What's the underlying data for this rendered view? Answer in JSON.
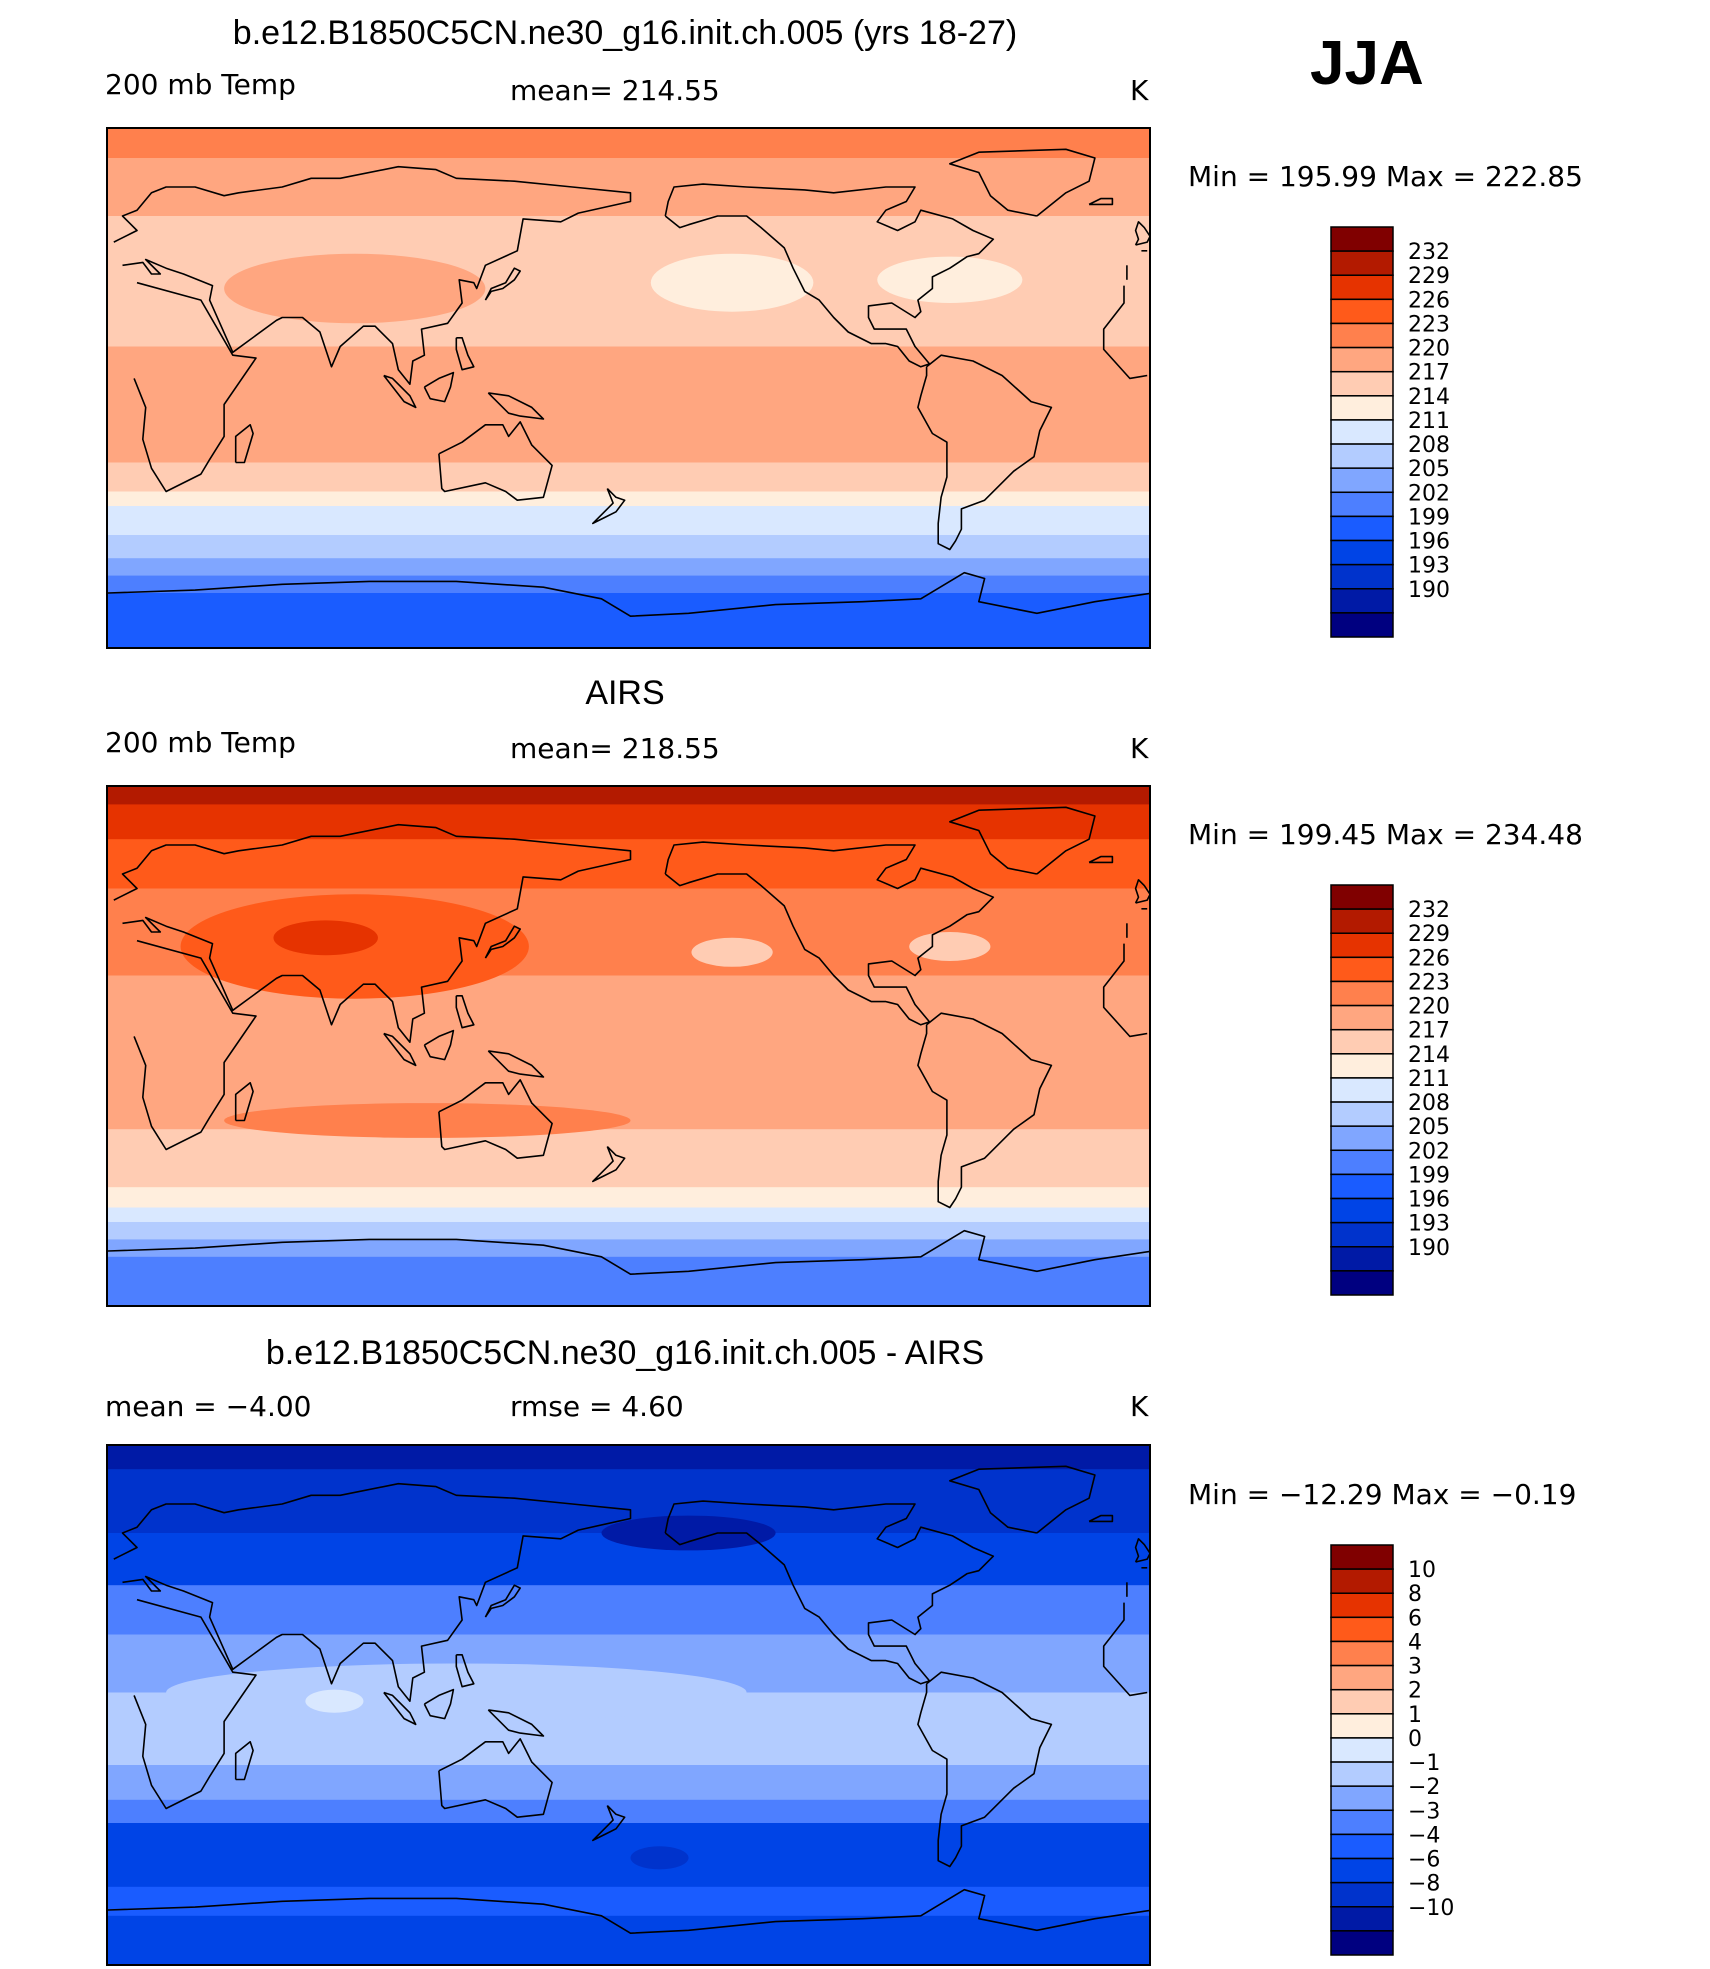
{
  "season": "JJA",
  "colorbars": {
    "abs_colors": [
      "#000080",
      "#001aa6",
      "#0033cc",
      "#0044e6",
      "#1a5cff",
      "#4d7fff",
      "#80a6ff",
      "#b3ccff",
      "#d9e8ff",
      "#ffeedd",
      "#ffccb3",
      "#ffa680",
      "#ff804d",
      "#ff5a1a",
      "#e63300",
      "#b31a00",
      "#800000"
    ],
    "diff_colors": [
      "#000080",
      "#001aa6",
      "#0033cc",
      "#0044e6",
      "#1a5cff",
      "#4d7fff",
      "#80a6ff",
      "#b3ccff",
      "#d9e8ff",
      "#ffeedd",
      "#ffccb3",
      "#ffa680",
      "#ff804d",
      "#ff5a1a",
      "#e63300",
      "#b31a00",
      "#800000"
    ]
  },
  "panels": [
    {
      "title": "b.e12.B1850C5CN.ne30_g16.init.ch.005 (yrs 18-27)",
      "left_label": "200 mb Temp",
      "center_label": "mean=  214.55",
      "units": "K",
      "minmax": "Min  =  195.99  Max  =  222.85",
      "colorbar_labels": [
        "232",
        "229",
        "226",
        "223",
        "220",
        "217",
        "214",
        "211",
        "208",
        "205",
        "202",
        "199",
        "196",
        "193",
        "190"
      ],
      "bands": [
        {
          "lat_top": 90,
          "lat_bot": 80,
          "color": "#ff804d"
        },
        {
          "lat_top": 80,
          "lat_bot": 60,
          "color": "#ffa680"
        },
        {
          "lat_top": 60,
          "lat_bot": 40,
          "color": "#ffccb3"
        },
        {
          "lat_top": 40,
          "lat_bot": 15,
          "color": "#ffccb3"
        },
        {
          "lat_top": 15,
          "lat_bot": -25,
          "color": "#ffa680"
        },
        {
          "lat_top": -25,
          "lat_bot": -35,
          "color": "#ffccb3"
        },
        {
          "lat_top": -35,
          "lat_bot": -40,
          "color": "#ffeedd"
        },
        {
          "lat_top": -40,
          "lat_bot": -50,
          "color": "#d9e8ff"
        },
        {
          "lat_top": -50,
          "lat_bot": -58,
          "color": "#b3ccff"
        },
        {
          "lat_top": -58,
          "lat_bot": -64,
          "color": "#80a6ff"
        },
        {
          "lat_top": -64,
          "lat_bot": -70,
          "color": "#4d7fff"
        },
        {
          "lat_top": -70,
          "lat_bot": -90,
          "color": "#1a5cff"
        }
      ],
      "blobs": [
        {
          "lon": 85,
          "lat": 35,
          "rlon": 45,
          "rlat": 12,
          "color": "#ffa680"
        },
        {
          "lon": 215,
          "lat": 37,
          "rlon": 28,
          "rlat": 10,
          "color": "#ffeedd"
        },
        {
          "lon": 290,
          "lat": 38,
          "rlon": 25,
          "rlat": 8,
          "color": "#ffeedd"
        }
      ]
    },
    {
      "title": "AIRS",
      "left_label": "200 mb Temp",
      "center_label": "mean=  218.55",
      "units": "K",
      "minmax": "Min  =  199.45  Max  =  234.48",
      "colorbar_labels": [
        "232",
        "229",
        "226",
        "223",
        "220",
        "217",
        "214",
        "211",
        "208",
        "205",
        "202",
        "199",
        "196",
        "193",
        "190"
      ],
      "bands": [
        {
          "lat_top": 90,
          "lat_bot": 84,
          "color": "#b31a00"
        },
        {
          "lat_top": 84,
          "lat_bot": 72,
          "color": "#e63300"
        },
        {
          "lat_top": 72,
          "lat_bot": 55,
          "color": "#ff5a1a"
        },
        {
          "lat_top": 55,
          "lat_bot": 25,
          "color": "#ff804d"
        },
        {
          "lat_top": 25,
          "lat_bot": -10,
          "color": "#ffa680"
        },
        {
          "lat_top": -10,
          "lat_bot": -28,
          "color": "#ffa680"
        },
        {
          "lat_top": -28,
          "lat_bot": -48,
          "color": "#ffccb3"
        },
        {
          "lat_top": -48,
          "lat_bot": -55,
          "color": "#ffeedd"
        },
        {
          "lat_top": -55,
          "lat_bot": -60,
          "color": "#d9e8ff"
        },
        {
          "lat_top": -60,
          "lat_bot": -66,
          "color": "#b3ccff"
        },
        {
          "lat_top": -66,
          "lat_bot": -72,
          "color": "#80a6ff"
        },
        {
          "lat_top": -72,
          "lat_bot": -90,
          "color": "#4d7fff"
        }
      ],
      "blobs": [
        {
          "lon": 85,
          "lat": 35,
          "rlon": 60,
          "rlat": 18,
          "color": "#ff5a1a"
        },
        {
          "lon": 75,
          "lat": 38,
          "rlon": 18,
          "rlat": 6,
          "color": "#e63300"
        },
        {
          "lon": 110,
          "lat": -25,
          "rlon": 70,
          "rlat": 6,
          "color": "#ff804d"
        },
        {
          "lon": 215,
          "lat": 33,
          "rlon": 14,
          "rlat": 5,
          "color": "#ffccb3"
        },
        {
          "lon": 290,
          "lat": 35,
          "rlon": 14,
          "rlat": 5,
          "color": "#ffccb3"
        }
      ]
    },
    {
      "title": "b.e12.B1850C5CN.ne30_g16.init.ch.005 - AIRS",
      "left_label": "mean  =    −4.00",
      "center_label": "rmse  =      4.60",
      "units": "K",
      "minmax": "Min  =  −12.29  Max  =    −0.19",
      "colorbar_labels": [
        "10",
        "8",
        "6",
        "4",
        "3",
        "2",
        "1",
        "0",
        "−1",
        "−2",
        "−3",
        "−4",
        "−6",
        "−8",
        "−10"
      ],
      "bands": [
        {
          "lat_top": 90,
          "lat_bot": 82,
          "color": "#001aa6"
        },
        {
          "lat_top": 82,
          "lat_bot": 60,
          "color": "#0033cc"
        },
        {
          "lat_top": 60,
          "lat_bot": 42,
          "color": "#0044e6"
        },
        {
          "lat_top": 42,
          "lat_bot": 25,
          "color": "#4d7fff"
        },
        {
          "lat_top": 25,
          "lat_bot": 5,
          "color": "#80a6ff"
        },
        {
          "lat_top": 5,
          "lat_bot": -20,
          "color": "#b3ccff"
        },
        {
          "lat_top": -20,
          "lat_bot": -32,
          "color": "#80a6ff"
        },
        {
          "lat_top": -32,
          "lat_bot": -40,
          "color": "#4d7fff"
        },
        {
          "lat_top": -40,
          "lat_bot": -62,
          "color": "#0044e6"
        },
        {
          "lat_top": -62,
          "lat_bot": -72,
          "color": "#1a5cff"
        },
        {
          "lat_top": -72,
          "lat_bot": -90,
          "color": "#0044e6"
        }
      ],
      "blobs": [
        {
          "lon": 120,
          "lat": 5,
          "rlon": 100,
          "rlat": 10,
          "color": "#b3ccff"
        },
        {
          "lon": 78,
          "lat": 2,
          "rlon": 10,
          "rlat": 4,
          "color": "#d9e8ff"
        },
        {
          "lon": 200,
          "lat": 60,
          "rlon": 30,
          "rlat": 6,
          "color": "#001aa6"
        },
        {
          "lon": 190,
          "lat": -52,
          "rlon": 10,
          "rlat": 4,
          "color": "#0033cc"
        }
      ]
    }
  ]
}
